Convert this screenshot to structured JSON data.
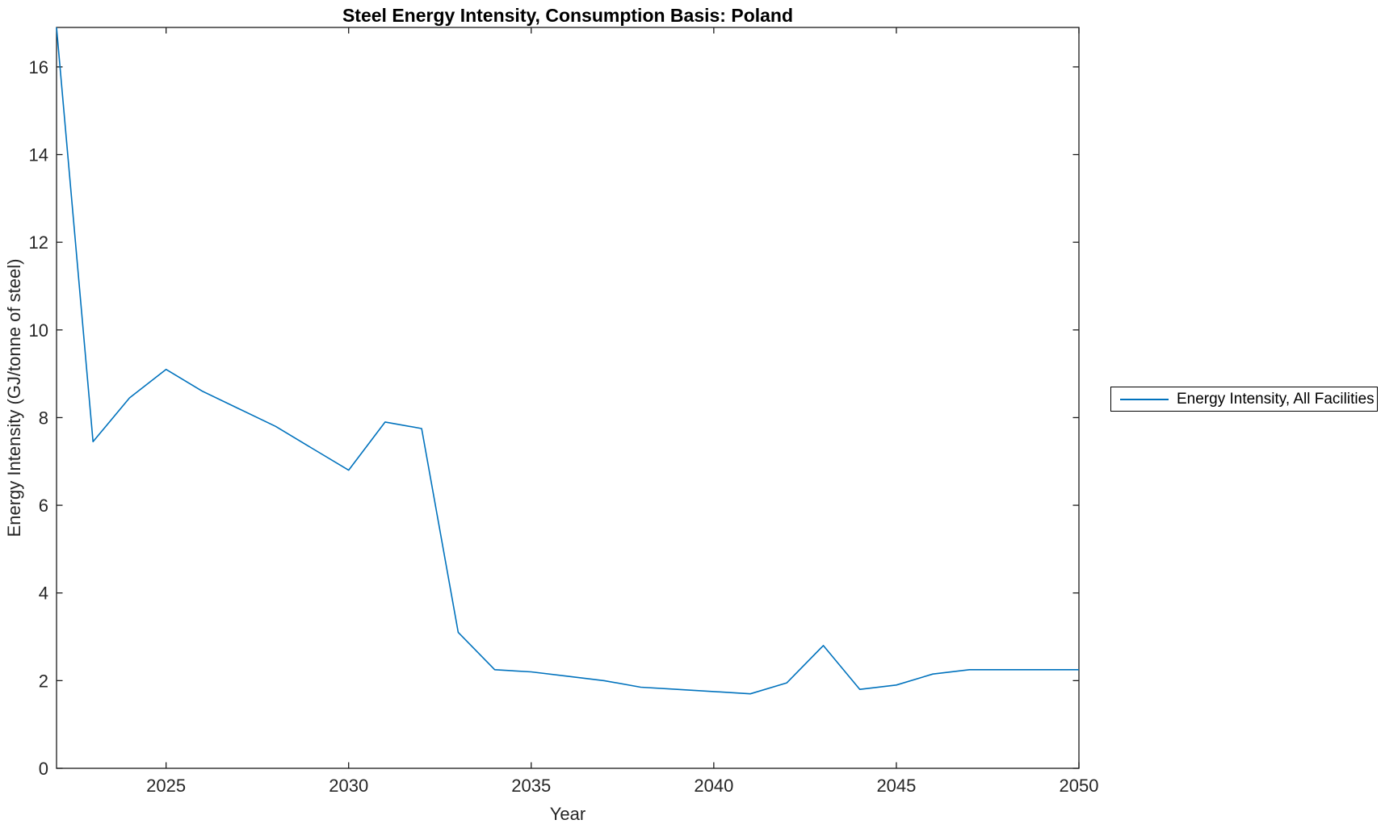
{
  "chart": {
    "title": "Steel Energy Intensity, Consumption Basis: Poland",
    "xlabel": "Year",
    "ylabel": "Energy Intensity (GJ/tonne of steel)",
    "legend": {
      "label": "Energy Intensity, All Facilities"
    },
    "colors": {
      "line": "#0072BD",
      "axis": "#1a1a1a",
      "tick_label": "#262626",
      "background": "#ffffff",
      "legend_border": "#000000"
    }
  },
  "chart_data": {
    "type": "line",
    "title": "Steel Energy Intensity, Consumption Basis: Poland",
    "xlabel": "Year",
    "ylabel": "Energy Intensity (GJ/tonne of steel)",
    "x": [
      2022,
      2023,
      2024,
      2025,
      2026,
      2027,
      2028,
      2029,
      2030,
      2031,
      2032,
      2033,
      2034,
      2035,
      2036,
      2037,
      2038,
      2039,
      2040,
      2041,
      2042,
      2043,
      2044,
      2045,
      2046,
      2047,
      2048,
      2049,
      2050
    ],
    "series": [
      {
        "name": "Energy Intensity, All Facilities",
        "color": "#0072BD",
        "values": [
          16.9,
          7.45,
          8.45,
          9.1,
          8.6,
          8.2,
          7.8,
          7.3,
          6.8,
          7.9,
          7.75,
          3.1,
          2.25,
          2.2,
          2.1,
          2.0,
          1.85,
          1.8,
          1.75,
          1.7,
          1.95,
          2.8,
          1.8,
          1.9,
          2.15,
          2.25,
          2.25,
          2.25,
          2.25
        ]
      }
    ],
    "xlim": [
      2022,
      2050
    ],
    "ylim": [
      0,
      16.9
    ],
    "x_ticks": [
      2025,
      2030,
      2035,
      2040,
      2045,
      2050
    ],
    "y_ticks": [
      0,
      2,
      4,
      6,
      8,
      10,
      12,
      14,
      16
    ],
    "grid": false,
    "legend_position": "outside-right"
  }
}
